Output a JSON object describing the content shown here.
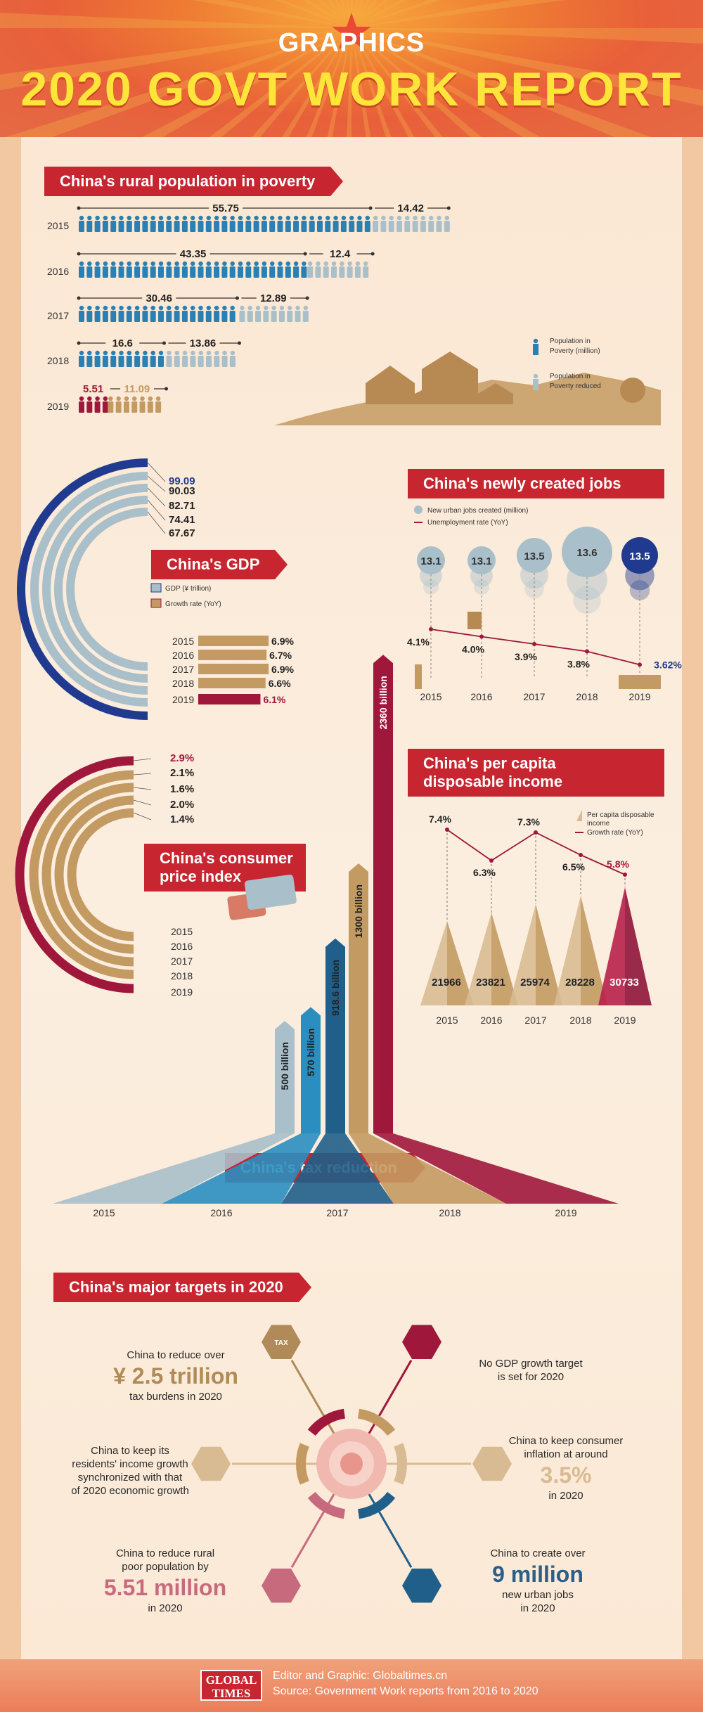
{
  "header": {
    "subtitle": "GRAPHICS",
    "title": "2020 GOVT WORK REPORT"
  },
  "sections": {
    "poverty": "China's rural population in poverty",
    "gdp": "China's GDP",
    "jobs": "China's newly created jobs",
    "cpi_line1": "China's consumer",
    "cpi_line2": "price index",
    "income_line1": "China's per capita",
    "income_line2": "disposable income",
    "tax": "China's tax reduction",
    "targets": "China's major targets in 2020"
  },
  "colors": {
    "red": "#c7252f",
    "blue": "#2a7fb3",
    "navy": "#1f3a8f",
    "gray": "#a9bfc9",
    "tan": "#c39a62",
    "maroon": "#a0173c"
  },
  "chart_data": [
    {
      "type": "bar",
      "id": "poverty",
      "categories": [
        "2015",
        "2016",
        "2017",
        "2018",
        "2019"
      ],
      "series": [
        {
          "name": "Population in Poverty (million)",
          "values": [
            55.75,
            43.35,
            30.46,
            16.6,
            5.51
          ]
        },
        {
          "name": "Population in Poverty reduced",
          "values": [
            14.42,
            12.4,
            12.89,
            13.86,
            11.09
          ]
        }
      ],
      "labels": {
        "in_poverty": [
          "55.75",
          "43.35",
          "30.46",
          "16.6",
          "5.51"
        ],
        "reduced": [
          "14.42",
          "12.4",
          "12.89",
          "13.86",
          "11.09"
        ]
      },
      "legend": [
        "Population in Poverty (million)",
        "Population in Poverty reduced"
      ]
    },
    {
      "type": "bar",
      "id": "gdp",
      "categories": [
        "2015",
        "2016",
        "2017",
        "2018",
        "2019"
      ],
      "series": [
        {
          "name": "GDP (¥ trillion)",
          "values": [
            67.67,
            74.41,
            82.71,
            90.03,
            99.09
          ]
        },
        {
          "name": "Growth rate (YoY)",
          "values": [
            6.9,
            6.7,
            6.9,
            6.6,
            6.1
          ]
        }
      ],
      "labels": {
        "gdp": [
          "67.67",
          "74.41",
          "82.71",
          "90.03",
          "99.09"
        ],
        "growth": [
          "6.9%",
          "6.7%",
          "6.9%",
          "6.6%",
          "6.1%"
        ]
      },
      "legend": [
        "GDP (¥ trillion)",
        "Growth rate (YoY)"
      ]
    },
    {
      "type": "line",
      "id": "jobs",
      "categories": [
        "2015",
        "2016",
        "2017",
        "2018",
        "2019"
      ],
      "series": [
        {
          "name": "New urban jobs created (million)",
          "values": [
            13.1,
            13.1,
            13.5,
            13.6,
            13.5
          ]
        },
        {
          "name": "Unemployment rate (YoY)",
          "values": [
            4.1,
            4.0,
            3.9,
            3.8,
            3.62
          ]
        }
      ],
      "labels": {
        "jobs": [
          "13.1",
          "13.1",
          "13.5",
          "13.6",
          "13.5"
        ],
        "rate": [
          "4.1%",
          "4.0%",
          "3.9%",
          "3.8%",
          "3.62%"
        ]
      },
      "legend": [
        "New urban jobs created (million)",
        "Unemployment rate (YoY)"
      ]
    },
    {
      "type": "bar",
      "id": "cpi",
      "categories": [
        "2015",
        "2016",
        "2017",
        "2018",
        "2019"
      ],
      "series": [
        {
          "name": "CPI",
          "values": [
            1.4,
            2.0,
            1.6,
            2.1,
            2.9
          ]
        }
      ],
      "labels": {
        "cpi": [
          "1.4%",
          "2.0%",
          "1.6%",
          "2.1%",
          "2.9%"
        ]
      }
    },
    {
      "type": "bar",
      "id": "income",
      "categories": [
        "2015",
        "2016",
        "2017",
        "2018",
        "2019"
      ],
      "series": [
        {
          "name": "Per capita disposable income",
          "values": [
            21966,
            23821,
            25974,
            28228,
            30733
          ]
        },
        {
          "name": "Growth rate (YoY)",
          "values": [
            7.4,
            6.3,
            7.3,
            6.5,
            5.8
          ]
        }
      ],
      "labels": {
        "income": [
          "21966",
          "23821",
          "25974",
          "28228",
          "30733"
        ],
        "growth": [
          "7.4%",
          "6.3%",
          "7.3%",
          "6.5%",
          "5.8%"
        ]
      },
      "legend": [
        "Per capita disposable income",
        "Growth rate (YoY)"
      ]
    },
    {
      "type": "bar",
      "id": "tax",
      "categories": [
        "2015",
        "2016",
        "2017",
        "2018",
        "2019"
      ],
      "series": [
        {
          "name": "Tax reduction (billion)",
          "values": [
            500,
            570,
            918.6,
            1300,
            2360
          ]
        }
      ],
      "labels": {
        "tax": [
          "500 billion",
          "570 billion",
          "918.6 billion",
          "1300 billion",
          "2360 billion"
        ]
      }
    }
  ],
  "targets": {
    "t1": {
      "pre": "China to reduce over",
      "big": "¥ 2.5 trillion",
      "post": "tax burdens in 2020"
    },
    "t2": {
      "line1": "No GDP growth target",
      "line2": "is set for 2020"
    },
    "t3": {
      "line1": "China to keep its",
      "line2": "residents' income growth",
      "line3": "synchronized with that",
      "line4": "of 2020 economic growth"
    },
    "t4": {
      "line1": "China to keep consumer",
      "line2": "inflation at around",
      "big": "3.5%",
      "post": "in 2020"
    },
    "t5": {
      "line1": "China to reduce rural",
      "line2": "poor population by",
      "big": "5.51 million",
      "post": "in 2020"
    },
    "t6": {
      "line1": "China to create over",
      "big": "9 million",
      "line2": "new urban jobs",
      "line3": "in 2020"
    },
    "icon_tax": "TAX"
  },
  "footer": {
    "logo_line1": "GLOBAL",
    "logo_line2": "TIMES",
    "credit": "Editor and Graphic: Globaltimes.cn",
    "source": "Source: Government Work reports from 2016 to 2020"
  }
}
